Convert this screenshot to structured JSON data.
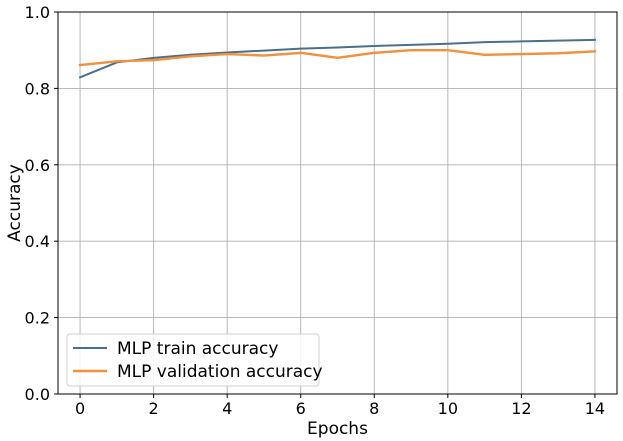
{
  "chart_data": {
    "type": "line",
    "title": "",
    "xlabel": "Epochs",
    "ylabel": "Accuracy",
    "xlim": [
      -0.6,
      14.6
    ],
    "ylim": [
      0.0,
      1.0
    ],
    "x": [
      0,
      1,
      2,
      3,
      4,
      5,
      6,
      7,
      8,
      9,
      10,
      11,
      12,
      13,
      14
    ],
    "xticks": [
      0,
      2,
      4,
      6,
      8,
      10,
      12,
      14
    ],
    "yticks": [
      0.0,
      0.2,
      0.4,
      0.6,
      0.8,
      1.0
    ],
    "xtick_labels": [
      "0",
      "2",
      "4",
      "6",
      "8",
      "10",
      "12",
      "14"
    ],
    "ytick_labels": [
      "0.0",
      "0.2",
      "0.4",
      "0.6",
      "0.8",
      "1.0"
    ],
    "grid": true,
    "legend_position": "lower-left",
    "series": [
      {
        "name": "MLP train accuracy",
        "color": "#4a6f8a",
        "values": [
          0.829,
          0.868,
          0.88,
          0.888,
          0.894,
          0.899,
          0.904,
          0.907,
          0.911,
          0.914,
          0.917,
          0.921,
          0.923,
          0.925,
          0.927
        ]
      },
      {
        "name": "MLP validation accuracy",
        "color": "#f0913f",
        "values": [
          0.861,
          0.871,
          0.874,
          0.884,
          0.89,
          0.886,
          0.893,
          0.88,
          0.893,
          0.9,
          0.9,
          0.888,
          0.89,
          0.892,
          0.897
        ]
      }
    ]
  }
}
